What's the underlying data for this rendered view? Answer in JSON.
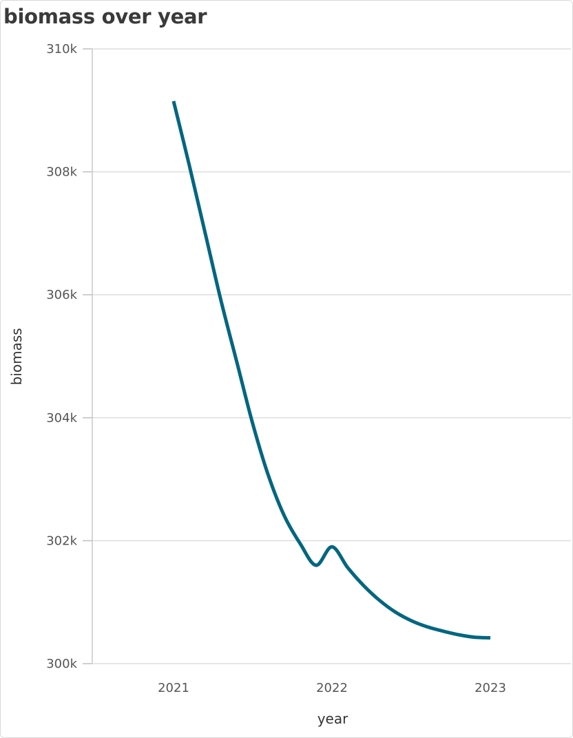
{
  "chart_data": {
    "type": "line",
    "title": "biomass over year",
    "xlabel": "year",
    "ylabel": "biomass",
    "x_ticks": [
      "2021",
      "2022",
      "2023"
    ],
    "y_ticks": [
      "300k",
      "302k",
      "304k",
      "306k",
      "308k",
      "310k"
    ],
    "ylim": [
      300000,
      310000
    ],
    "grid": true,
    "series": [
      {
        "color": "#006680",
        "points": [
          {
            "x": 2021.0,
            "y": 309150
          },
          {
            "x": 2021.1,
            "y": 308100
          },
          {
            "x": 2021.2,
            "y": 307000
          },
          {
            "x": 2021.3,
            "y": 305900
          },
          {
            "x": 2021.4,
            "y": 304900
          },
          {
            "x": 2021.5,
            "y": 303900
          },
          {
            "x": 2021.6,
            "y": 303050
          },
          {
            "x": 2021.7,
            "y": 302400
          },
          {
            "x": 2021.8,
            "y": 301950
          },
          {
            "x": 2021.9,
            "y": 301600
          },
          {
            "x": 2022.0,
            "y": 301900
          },
          {
            "x": 2022.1,
            "y": 301560
          },
          {
            "x": 2022.2,
            "y": 301270
          },
          {
            "x": 2022.3,
            "y": 301030
          },
          {
            "x": 2022.4,
            "y": 300840
          },
          {
            "x": 2022.5,
            "y": 300700
          },
          {
            "x": 2022.6,
            "y": 300600
          },
          {
            "x": 2022.7,
            "y": 300530
          },
          {
            "x": 2022.8,
            "y": 300470
          },
          {
            "x": 2022.9,
            "y": 300430
          },
          {
            "x": 2023.0,
            "y": 300420
          }
        ]
      }
    ]
  }
}
